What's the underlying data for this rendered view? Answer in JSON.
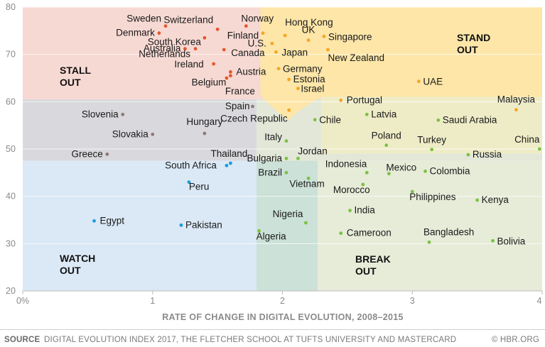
{
  "chart_data": {
    "type": "scatter",
    "title": "",
    "xlabel": "RATE OF CHANGE IN DIGITAL EVOLUTION, 2008–2015",
    "ylabel": "",
    "xlim": [
      0,
      4
    ],
    "ylim": [
      20,
      80
    ],
    "xticks": [
      {
        "v": 0,
        "label": "0%"
      },
      {
        "v": 1,
        "label": "1"
      },
      {
        "v": 2,
        "label": "2"
      },
      {
        "v": 3,
        "label": "3"
      },
      {
        "v": 4,
        "label": "4"
      }
    ],
    "yticks": [
      {
        "v": 20,
        "label": "20"
      },
      {
        "v": 30,
        "label": "30"
      },
      {
        "v": 40,
        "label": "40"
      },
      {
        "v": 50,
        "label": "50"
      },
      {
        "v": 60,
        "label": "60"
      },
      {
        "v": 70,
        "label": "70"
      },
      {
        "v": 80,
        "label": "80"
      }
    ],
    "grid": "horizontal",
    "quadrants": [
      {
        "name": "STALL OUT",
        "lines": [
          "STALL",
          "OUT"
        ],
        "color": "#f7d9d3"
      },
      {
        "name": "STAND OUT",
        "lines": [
          "STAND",
          "OUT"
        ],
        "color": "#fde6a8"
      },
      {
        "name": "WATCH OUT",
        "lines": [
          "WATCH",
          "OUT"
        ],
        "color": "#dbe9f6"
      },
      {
        "name": "BREAK OUT",
        "lines": [
          "BREAK",
          "OUT"
        ],
        "color": "#e6ecd8"
      }
    ],
    "colors": {
      "stall": "#e4572e",
      "stand": "#f5a623",
      "watch": "#1e9bd7",
      "break": "#7cc242",
      "neutral": "#8c7b75"
    },
    "points": [
      {
        "name": "Sweden",
        "x": 1.1,
        "y": 76,
        "group": "stall"
      },
      {
        "name": "Switzerland",
        "x": 1.5,
        "y": 75.3,
        "group": "stall"
      },
      {
        "name": "Norway",
        "x": 1.72,
        "y": 76,
        "group": "stall"
      },
      {
        "name": "Hong Kong",
        "x": 2.02,
        "y": 74,
        "group": "stand"
      },
      {
        "name": "Denmark",
        "x": 1.05,
        "y": 74.5,
        "group": "stall"
      },
      {
        "name": "Finland",
        "x": 1.85,
        "y": 74.5,
        "group": "stand"
      },
      {
        "name": "UK",
        "x": 2.2,
        "y": 73,
        "group": "stand"
      },
      {
        "name": "Singapore",
        "x": 2.32,
        "y": 73.8,
        "group": "stand"
      },
      {
        "name": "South Korea",
        "x": 1.4,
        "y": 73.5,
        "group": "stall"
      },
      {
        "name": "Australia",
        "x": 1.25,
        "y": 71.2,
        "group": "stall"
      },
      {
        "name": "U.S.",
        "x": 1.92,
        "y": 72.3,
        "group": "stand"
      },
      {
        "name": "Japan",
        "x": 1.95,
        "y": 70.5,
        "group": "stand"
      },
      {
        "name": "New Zealand",
        "x": 2.35,
        "y": 71,
        "group": "stand"
      },
      {
        "name": "Netherlands",
        "x": 1.33,
        "y": 71.2,
        "group": "stall"
      },
      {
        "name": "Canada",
        "x": 1.55,
        "y": 71,
        "group": "stall"
      },
      {
        "name": "Germany",
        "x": 1.97,
        "y": 67,
        "group": "stand"
      },
      {
        "name": "Ireland",
        "x": 1.47,
        "y": 68,
        "group": "stall"
      },
      {
        "name": "Austria",
        "x": 1.6,
        "y": 66.3,
        "group": "stall"
      },
      {
        "name": "Belgium",
        "x": 1.6,
        "y": 65.5,
        "group": "stall"
      },
      {
        "name": "France",
        "x": 1.57,
        "y": 65,
        "group": "stall"
      },
      {
        "name": "Estonia",
        "x": 2.05,
        "y": 64.7,
        "group": "stand"
      },
      {
        "name": "Israel",
        "x": 2.12,
        "y": 62.8,
        "group": "stand"
      },
      {
        "name": "UAE",
        "x": 3.05,
        "y": 64.3,
        "group": "stand"
      },
      {
        "name": "Portugal",
        "x": 2.45,
        "y": 60.3,
        "group": "stand"
      },
      {
        "name": "Malaysia",
        "x": 3.8,
        "y": 58.3,
        "group": "stand"
      },
      {
        "name": "Spain",
        "x": 1.77,
        "y": 59,
        "group": "neutral"
      },
      {
        "name": "Slovenia",
        "x": 0.77,
        "y": 57.3,
        "group": "neutral"
      },
      {
        "name": "Latvia",
        "x": 2.65,
        "y": 57.3,
        "group": "break"
      },
      {
        "name": "Czech Republic",
        "x": 2.05,
        "y": 58.2,
        "group": "stand"
      },
      {
        "name": "Chile",
        "x": 2.25,
        "y": 56.2,
        "group": "break"
      },
      {
        "name": "Saudi Arabia",
        "x": 3.2,
        "y": 56.1,
        "group": "break"
      },
      {
        "name": "Hungary",
        "x": 1.4,
        "y": 53.3,
        "group": "neutral"
      },
      {
        "name": "Slovakia",
        "x": 1.0,
        "y": 53.1,
        "group": "neutral"
      },
      {
        "name": "Italy",
        "x": 2.03,
        "y": 51.7,
        "group": "break"
      },
      {
        "name": "Poland",
        "x": 2.8,
        "y": 50.8,
        "group": "break"
      },
      {
        "name": "Turkey",
        "x": 3.15,
        "y": 49.9,
        "group": "break"
      },
      {
        "name": "China",
        "x": 3.98,
        "y": 50,
        "group": "break"
      },
      {
        "name": "Russia",
        "x": 3.43,
        "y": 48.8,
        "group": "break"
      },
      {
        "name": "Greece",
        "x": 0.65,
        "y": 48.9,
        "group": "neutral"
      },
      {
        "name": "Thailand",
        "x": 1.6,
        "y": 47,
        "group": "watch"
      },
      {
        "name": "Bulgaria",
        "x": 2.03,
        "y": 48,
        "group": "break"
      },
      {
        "name": "Jordan",
        "x": 2.12,
        "y": 48,
        "group": "break"
      },
      {
        "name": "South Africa",
        "x": 1.57,
        "y": 46.5,
        "group": "watch"
      },
      {
        "name": "Indonesia",
        "x": 2.65,
        "y": 45,
        "group": "break"
      },
      {
        "name": "Mexico",
        "x": 2.82,
        "y": 44.8,
        "group": "break"
      },
      {
        "name": "Colombia",
        "x": 3.1,
        "y": 45.3,
        "group": "break"
      },
      {
        "name": "Brazil",
        "x": 2.03,
        "y": 45,
        "group": "break"
      },
      {
        "name": "Peru",
        "x": 1.28,
        "y": 43,
        "group": "watch"
      },
      {
        "name": "Vietnam",
        "x": 2.2,
        "y": 43.8,
        "group": "break"
      },
      {
        "name": "Morocco",
        "x": 2.62,
        "y": 42.5,
        "group": "break"
      },
      {
        "name": "Philippines",
        "x": 3.0,
        "y": 41,
        "group": "break"
      },
      {
        "name": "Kenya",
        "x": 3.5,
        "y": 39.2,
        "group": "break"
      },
      {
        "name": "India",
        "x": 2.52,
        "y": 37,
        "group": "break"
      },
      {
        "name": "Egypt",
        "x": 0.55,
        "y": 34.8,
        "group": "watch"
      },
      {
        "name": "Pakistan",
        "x": 1.22,
        "y": 33.9,
        "group": "watch"
      },
      {
        "name": "Nigeria",
        "x": 2.18,
        "y": 34.4,
        "group": "break"
      },
      {
        "name": "Algeria",
        "x": 1.82,
        "y": 32.7,
        "group": "break"
      },
      {
        "name": "Cameroon",
        "x": 2.45,
        "y": 32.2,
        "group": "break"
      },
      {
        "name": "Bangladesh",
        "x": 3.13,
        "y": 30.3,
        "group": "break"
      },
      {
        "name": "Bolivia",
        "x": 3.62,
        "y": 30.6,
        "group": "break"
      }
    ]
  },
  "footer": {
    "source_tag": "SOURCE",
    "source_text": "DIGITAL EVOLUTION INDEX 2017, THE FLETCHER SCHOOL AT TUFTS UNIVERSITY AND MASTERCARD",
    "credit": "© HBR.ORG"
  }
}
